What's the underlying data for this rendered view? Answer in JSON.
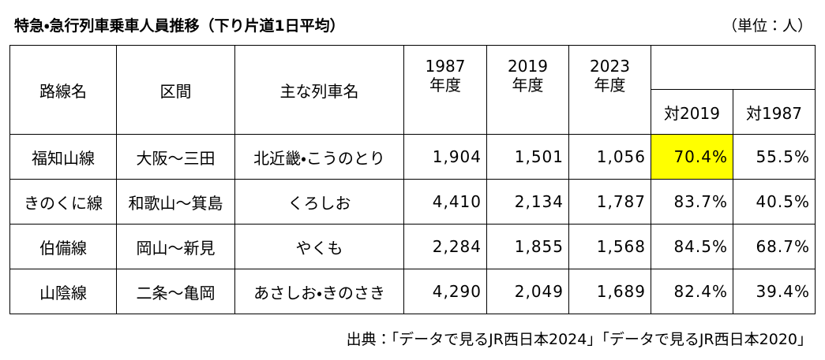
{
  "header": {
    "title": "特急・急行列車乗車人員推移（下り片道1日平均）",
    "unit": "（単位：人）"
  },
  "table": {
    "columns": [
      "路線名",
      "区間",
      "主な列車名"
    ],
    "years": [
      [
        "1987",
        "年度"
      ],
      [
        "2019",
        "年度"
      ],
      [
        "2023",
        "年度"
      ]
    ],
    "ratios": [
      "対2019",
      "対1987"
    ],
    "rows": [
      [
        "福知山線",
        "大阪～三田",
        "北近畿・こうのとり",
        "1,904",
        "1,501",
        "1,056",
        "70.4%",
        "55.5%"
      ],
      [
        "きのくに線",
        "和歌山～箕島",
        "くろしお",
        "4,410",
        "2,134",
        "1,787",
        "83.7%",
        "40.5%"
      ],
      [
        "伯備線",
        "岡山～新見",
        "やくも",
        "2,284",
        "1,855",
        "1,568",
        "84.5%",
        "68.7%"
      ],
      [
        "山陰線",
        "二条～亀岡",
        "あさしお・きのさき",
        "4,290",
        "2,049",
        "1,689",
        "82.4%",
        "39.4%"
      ]
    ]
  },
  "footer": {
    "source": "出典：「データで見るJR西日本2024」「データで見るJR西日本2020」"
  }
}
